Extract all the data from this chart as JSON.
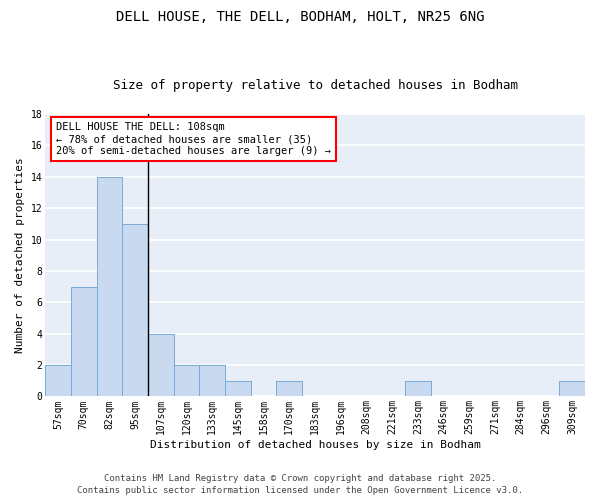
{
  "title1": "DELL HOUSE, THE DELL, BODHAM, HOLT, NR25 6NG",
  "title2": "Size of property relative to detached houses in Bodham",
  "xlabel": "Distribution of detached houses by size in Bodham",
  "ylabel": "Number of detached properties",
  "categories": [
    "57sqm",
    "70sqm",
    "82sqm",
    "95sqm",
    "107sqm",
    "120sqm",
    "133sqm",
    "145sqm",
    "158sqm",
    "170sqm",
    "183sqm",
    "196sqm",
    "208sqm",
    "221sqm",
    "233sqm",
    "246sqm",
    "259sqm",
    "271sqm",
    "284sqm",
    "296sqm",
    "309sqm"
  ],
  "values": [
    2,
    7,
    14,
    11,
    4,
    2,
    2,
    1,
    0,
    1,
    0,
    0,
    0,
    0,
    1,
    0,
    0,
    0,
    0,
    0,
    1
  ],
  "bar_color": "#c9d9f0",
  "bar_edge_color": "#7aaad8",
  "vline_index": 4,
  "annotation_text": "DELL HOUSE THE DELL: 108sqm\n← 78% of detached houses are smaller (35)\n20% of semi-detached houses are larger (9) →",
  "annotation_box_color": "white",
  "annotation_box_edge_color": "red",
  "ylim": [
    0,
    18
  ],
  "yticks": [
    0,
    2,
    4,
    6,
    8,
    10,
    12,
    14,
    16,
    18
  ],
  "background_color": "#e8eef8",
  "grid_color": "white",
  "footer_text": "Contains HM Land Registry data © Crown copyright and database right 2025.\nContains public sector information licensed under the Open Government Licence v3.0.",
  "title_fontsize": 10,
  "subtitle_fontsize": 9,
  "axis_label_fontsize": 8,
  "tick_fontsize": 7,
  "annotation_fontsize": 7.5,
  "footer_fontsize": 6.5
}
